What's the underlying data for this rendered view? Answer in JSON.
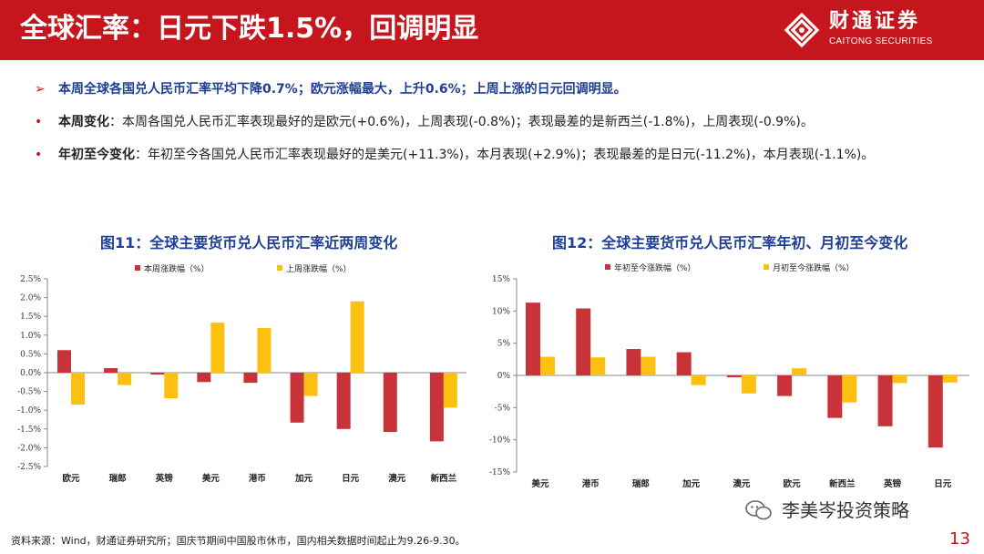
{
  "header": {
    "title": "全球汇率：日元下跌1.5%，回调明显",
    "brand_cn": "财通证券",
    "brand_en": "CAITONG SECURITIES",
    "bg_color": "#c4161c"
  },
  "bullets": [
    {
      "mark": "➢",
      "lead": "",
      "text": "本周全球各国兑人民币汇率平均下降0.7%；欧元涨幅最大，上升0.6%；上周上涨的日元回调明显。"
    },
    {
      "mark": "•",
      "lead": "本周变化",
      "text": "：本周各国兑人民币汇率表现最好的是欧元(+0.6%)，上周表现(-0.8%)；表现最差的是新西兰(-1.8%)，上周表现(-0.9%)。"
    },
    {
      "mark": "•",
      "lead": "年初至今变化",
      "text": "：年初至今各国兑人民币汇率表现最好的是美元(+11.3%)，本月表现(+2.9%)；表现最差的是日元(-11.2%)，本月表现(-1.1%)。"
    }
  ],
  "charts": {
    "chart11_title": "图11：全球主要货币兑人民币汇率近两周变化",
    "chart12_title": "图12：全球主要货币兑人民币汇率年初、月初至今变化"
  },
  "chart_data": [
    {
      "type": "bar",
      "title": "图11：全球主要货币兑人民币汇率近两周变化",
      "categories": [
        "欧元",
        "瑞郎",
        "英镑",
        "美元",
        "港币",
        "加元",
        "日元",
        "澳元",
        "新西兰"
      ],
      "series": [
        {
          "name": "本周涨跌幅（%）",
          "color": "#c8333a",
          "values": [
            0.6,
            0.12,
            -0.05,
            -0.25,
            -0.27,
            -1.33,
            -1.5,
            -1.58,
            -1.83
          ]
        },
        {
          "name": "上周涨跌幅（%）",
          "color": "#fcc010",
          "values": [
            -0.85,
            -0.33,
            -0.68,
            1.33,
            1.19,
            -0.62,
            1.9,
            0.0,
            -0.93
          ]
        }
      ],
      "yticks": [
        "2.5%",
        "2.0%",
        "1.5%",
        "1.0%",
        "0.5%",
        "0.0%",
        "-0.5%",
        "-1.0%",
        "-1.5%",
        "-2.0%",
        "-2.5%"
      ],
      "ylim": [
        -2.5,
        2.5
      ],
      "legend": "top"
    },
    {
      "type": "bar",
      "title": "图12：全球主要货币兑人民币汇率年初、月初至今变化",
      "categories": [
        "美元",
        "港币",
        "瑞郎",
        "加元",
        "澳元",
        "欧元",
        "新西兰",
        "英镑",
        "日元"
      ],
      "series": [
        {
          "name": "年初至今涨跌幅（%）",
          "color": "#c8333a",
          "values": [
            11.3,
            10.4,
            4.1,
            3.6,
            -0.3,
            -3.2,
            -6.6,
            -7.9,
            -11.2
          ]
        },
        {
          "name": "月初至今涨跌幅（%）",
          "color": "#fcc010",
          "values": [
            2.9,
            2.8,
            2.9,
            -1.5,
            -2.8,
            1.1,
            -4.2,
            -1.2,
            -1.1
          ]
        }
      ],
      "yticks": [
        "15%",
        "10%",
        "5%",
        "0%",
        "-5%",
        "-10%",
        "-15%"
      ],
      "ylim": [
        -15,
        15
      ],
      "legend": "top"
    }
  ],
  "footer": {
    "source": "资料来源：Wind，财通证券研究所；国庆节期间中国股市休市，国内相关数据时间起止为9.26-9.30。",
    "watermark": "李美岑投资策略",
    "page_number": "13"
  }
}
